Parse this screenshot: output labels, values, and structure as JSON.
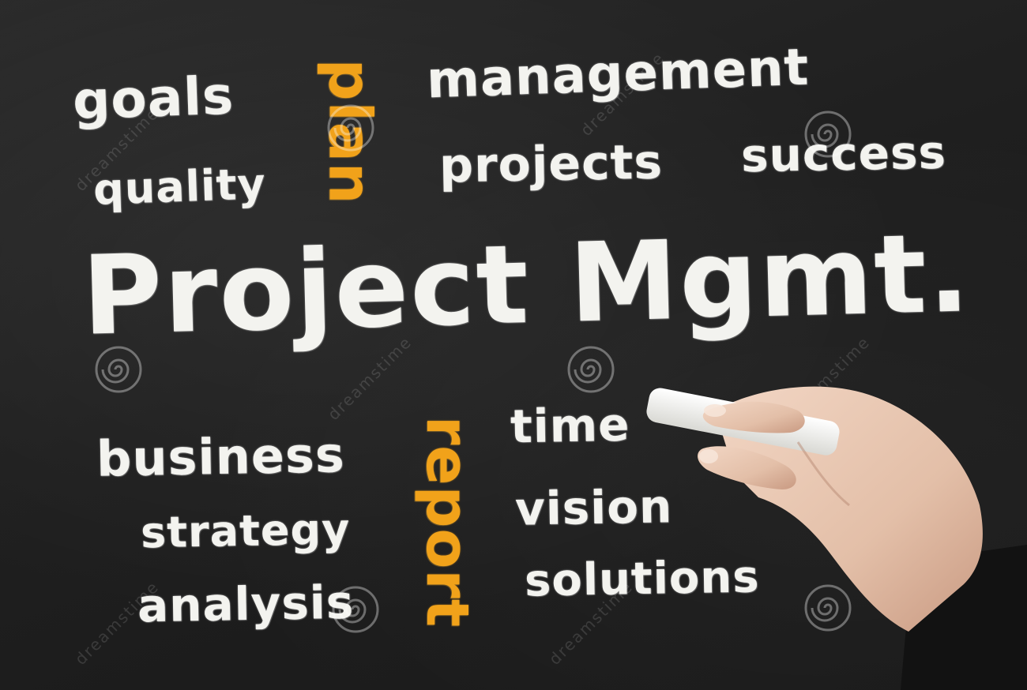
{
  "board": {
    "title": "Project Mgmt.",
    "words_top_left": [
      "goals",
      "quality"
    ],
    "accent_top": "plan",
    "words_top_right": [
      "management",
      "projects",
      "success"
    ],
    "words_bottom_left": [
      "business",
      "strategy",
      "analysis"
    ],
    "accent_bottom": "report",
    "words_bottom_right": [
      "time",
      "vision",
      "solutions"
    ]
  },
  "watermark": {
    "text": "dreamstime"
  },
  "colors": {
    "chalk": "#f3f3ef",
    "accent": "#f1a21a",
    "board": "#1f1f1f"
  }
}
